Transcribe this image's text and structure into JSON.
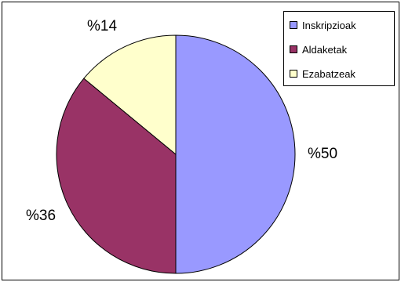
{
  "chart_data": {
    "type": "pie",
    "categories": [
      "Inskripzioak",
      "Aldaketak",
      "Ezabatzeak"
    ],
    "values": [
      50,
      36,
      14
    ],
    "data_labels": [
      "%50",
      "%36",
      "%14"
    ],
    "colors": [
      "#9999ff",
      "#993366",
      "#ffffcc"
    ],
    "legend_placement": "top-right"
  }
}
